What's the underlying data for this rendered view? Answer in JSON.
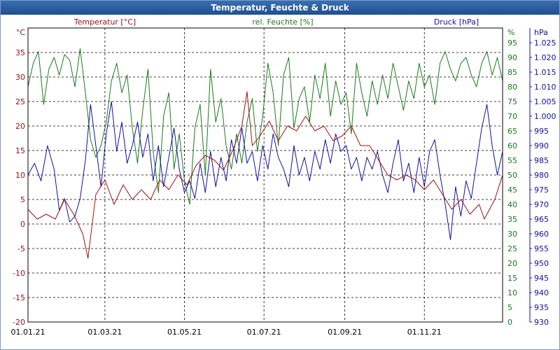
{
  "window": {
    "title": "Temperatur, Feuchte & Druck"
  },
  "chart_data": {
    "type": "line",
    "title": "Temperatur, Feuchte & Druck",
    "grid": true,
    "x": {
      "range": [
        "01.01.21",
        "31.12.21"
      ],
      "tick_labels": [
        "01.01.21",
        "01.03.21",
        "01.05.21",
        "01.07.21",
        "01.09.21",
        "01.11.21"
      ],
      "tick_days": [
        0,
        59,
        120,
        181,
        243,
        304
      ]
    },
    "y_axes": {
      "temperature": {
        "unit": "°C",
        "range": [
          -20,
          40
        ],
        "ticks": [
          -20,
          -15,
          -10,
          -5,
          0,
          5,
          10,
          15,
          20,
          25,
          30,
          35
        ],
        "color": "#a01010"
      },
      "humidity": {
        "unit": "%",
        "range": [
          0,
          100
        ],
        "ticks": [
          0,
          5,
          10,
          15,
          20,
          25,
          30,
          35,
          40,
          45,
          50,
          55,
          60,
          65,
          70,
          75,
          80,
          85,
          90,
          95
        ],
        "color": "#1a7a1a"
      },
      "pressure": {
        "unit": "hPa",
        "range": [
          930,
          1030
        ],
        "ticks": [
          "930",
          "935",
          "940",
          "945",
          "950",
          "955",
          "960",
          "965",
          "970",
          "975",
          "980",
          "985",
          "990",
          "995",
          "1.000",
          "1.005",
          "1.010",
          "1.015",
          "1.020",
          "1.025"
        ],
        "color": "#1010a0"
      }
    },
    "series": [
      {
        "name": "Temperatur [°C]",
        "axis": "temperature",
        "color": "#a01010",
        "points": [
          [
            0,
            3
          ],
          [
            7,
            1
          ],
          [
            14,
            2
          ],
          [
            21,
            1
          ],
          [
            28,
            5
          ],
          [
            35,
            2
          ],
          [
            42,
            -2
          ],
          [
            46,
            -7
          ],
          [
            52,
            6
          ],
          [
            59,
            9
          ],
          [
            66,
            4
          ],
          [
            73,
            8
          ],
          [
            80,
            5
          ],
          [
            87,
            7
          ],
          [
            94,
            5
          ],
          [
            101,
            9
          ],
          [
            108,
            7
          ],
          [
            115,
            10
          ],
          [
            122,
            8
          ],
          [
            129,
            12
          ],
          [
            136,
            14
          ],
          [
            143,
            13
          ],
          [
            150,
            11
          ],
          [
            157,
            15
          ],
          [
            164,
            20
          ],
          [
            168,
            27
          ],
          [
            172,
            16
          ],
          [
            178,
            18
          ],
          [
            185,
            21
          ],
          [
            192,
            17
          ],
          [
            199,
            20
          ],
          [
            206,
            19
          ],
          [
            213,
            22
          ],
          [
            220,
            19
          ],
          [
            227,
            20
          ],
          [
            234,
            17
          ],
          [
            241,
            18
          ],
          [
            248,
            20
          ],
          [
            255,
            16
          ],
          [
            262,
            16
          ],
          [
            269,
            13
          ],
          [
            276,
            10
          ],
          [
            283,
            9
          ],
          [
            290,
            10
          ],
          [
            297,
            9
          ],
          [
            304,
            7
          ],
          [
            311,
            9
          ],
          [
            318,
            6
          ],
          [
            325,
            3
          ],
          [
            332,
            5
          ],
          [
            339,
            2
          ],
          [
            346,
            4
          ],
          [
            350,
            1
          ],
          [
            354,
            3
          ],
          [
            358,
            5
          ],
          [
            364,
            10
          ]
        ]
      },
      {
        "name": "rel. Feuchte [%]",
        "axis": "humidity",
        "color": "#1a7a1a",
        "points": [
          [
            0,
            80
          ],
          [
            4,
            88
          ],
          [
            8,
            92
          ],
          [
            12,
            74
          ],
          [
            16,
            86
          ],
          [
            20,
            90
          ],
          [
            24,
            84
          ],
          [
            28,
            91
          ],
          [
            32,
            89
          ],
          [
            36,
            80
          ],
          [
            40,
            93
          ],
          [
            44,
            78
          ],
          [
            48,
            62
          ],
          [
            52,
            56
          ],
          [
            56,
            60
          ],
          [
            60,
            68
          ],
          [
            64,
            82
          ],
          [
            68,
            88
          ],
          [
            72,
            78
          ],
          [
            76,
            84
          ],
          [
            80,
            66
          ],
          [
            84,
            54
          ],
          [
            88,
            72
          ],
          [
            92,
            86
          ],
          [
            96,
            58
          ],
          [
            100,
            44
          ],
          [
            104,
            70
          ],
          [
            108,
            78
          ],
          [
            112,
            52
          ],
          [
            116,
            64
          ],
          [
            120,
            48
          ],
          [
            124,
            40
          ],
          [
            128,
            66
          ],
          [
            132,
            74
          ],
          [
            136,
            50
          ],
          [
            140,
            86
          ],
          [
            144,
            68
          ],
          [
            148,
            76
          ],
          [
            152,
            60
          ],
          [
            156,
            52
          ],
          [
            160,
            64
          ],
          [
            164,
            54
          ],
          [
            168,
            68
          ],
          [
            172,
            76
          ],
          [
            176,
            58
          ],
          [
            180,
            70
          ],
          [
            184,
            88
          ],
          [
            188,
            78
          ],
          [
            192,
            60
          ],
          [
            196,
            84
          ],
          [
            200,
            90
          ],
          [
            204,
            66
          ],
          [
            208,
            76
          ],
          [
            212,
            80
          ],
          [
            216,
            68
          ],
          [
            220,
            84
          ],
          [
            224,
            76
          ],
          [
            228,
            88
          ],
          [
            232,
            70
          ],
          [
            236,
            82
          ],
          [
            240,
            74
          ],
          [
            244,
            78
          ],
          [
            248,
            64
          ],
          [
            252,
            88
          ],
          [
            256,
            78
          ],
          [
            260,
            70
          ],
          [
            264,
            82
          ],
          [
            268,
            74
          ],
          [
            272,
            84
          ],
          [
            276,
            76
          ],
          [
            280,
            88
          ],
          [
            284,
            80
          ],
          [
            288,
            72
          ],
          [
            292,
            82
          ],
          [
            296,
            76
          ],
          [
            300,
            88
          ],
          [
            304,
            80
          ],
          [
            308,
            84
          ],
          [
            312,
            74
          ],
          [
            316,
            88
          ],
          [
            320,
            92
          ],
          [
            324,
            86
          ],
          [
            328,
            82
          ],
          [
            332,
            88
          ],
          [
            336,
            90
          ],
          [
            340,
            84
          ],
          [
            344,
            80
          ],
          [
            348,
            88
          ],
          [
            352,
            92
          ],
          [
            356,
            84
          ],
          [
            360,
            90
          ],
          [
            364,
            82
          ]
        ]
      },
      {
        "name": "Druck [hPa]",
        "axis": "pressure",
        "color": "#1010a0",
        "points": [
          [
            0,
            980
          ],
          [
            5,
            984
          ],
          [
            10,
            978
          ],
          [
            15,
            990
          ],
          [
            20,
            982
          ],
          [
            24,
            968
          ],
          [
            28,
            972
          ],
          [
            32,
            964
          ],
          [
            36,
            966
          ],
          [
            40,
            972
          ],
          [
            44,
            985
          ],
          [
            48,
            1004
          ],
          [
            52,
            990
          ],
          [
            56,
            976
          ],
          [
            60,
            994
          ],
          [
            64,
            1005
          ],
          [
            68,
            988
          ],
          [
            72,
            998
          ],
          [
            76,
            984
          ],
          [
            80,
            990
          ],
          [
            84,
            998
          ],
          [
            88,
            986
          ],
          [
            92,
            994
          ],
          [
            96,
            978
          ],
          [
            100,
            990
          ],
          [
            104,
            976
          ],
          [
            108,
            986
          ],
          [
            112,
            996
          ],
          [
            116,
            982
          ],
          [
            120,
            974
          ],
          [
            124,
            978
          ],
          [
            128,
            972
          ],
          [
            132,
            984
          ],
          [
            136,
            974
          ],
          [
            140,
            988
          ],
          [
            144,
            976
          ],
          [
            148,
            986
          ],
          [
            152,
            978
          ],
          [
            156,
            992
          ],
          [
            160,
            984
          ],
          [
            164,
            996
          ],
          [
            168,
            984
          ],
          [
            172,
            988
          ],
          [
            176,
            978
          ],
          [
            180,
            990
          ],
          [
            184,
            982
          ],
          [
            188,
            994
          ],
          [
            192,
            986
          ],
          [
            196,
            982
          ],
          [
            200,
            976
          ],
          [
            204,
            990
          ],
          [
            208,
            980
          ],
          [
            212,
            986
          ],
          [
            216,
            978
          ],
          [
            220,
            988
          ],
          [
            224,
            982
          ],
          [
            228,
            992
          ],
          [
            232,
            984
          ],
          [
            236,
            994
          ],
          [
            240,
            988
          ],
          [
            244,
            990
          ],
          [
            248,
            982
          ],
          [
            252,
            986
          ],
          [
            256,
            978
          ],
          [
            260,
            986
          ],
          [
            264,
            982
          ],
          [
            268,
            988
          ],
          [
            272,
            980
          ],
          [
            276,
            974
          ],
          [
            280,
            984
          ],
          [
            284,
            992
          ],
          [
            288,
            978
          ],
          [
            292,
            984
          ],
          [
            296,
            974
          ],
          [
            300,
            986
          ],
          [
            304,
            976
          ],
          [
            308,
            988
          ],
          [
            312,
            992
          ],
          [
            316,
            980
          ],
          [
            320,
            970
          ],
          [
            324,
            958
          ],
          [
            328,
            976
          ],
          [
            332,
            966
          ],
          [
            336,
            978
          ],
          [
            340,
            972
          ],
          [
            344,
            984
          ],
          [
            348,
            996
          ],
          [
            352,
            1004
          ],
          [
            356,
            990
          ],
          [
            360,
            980
          ],
          [
            364,
            988
          ]
        ]
      }
    ],
    "axis_titles": {
      "temperature": "Temperatur [°C]",
      "humidity": "rel. Feuchte [%]",
      "pressure": "Druck [hPa]"
    }
  }
}
